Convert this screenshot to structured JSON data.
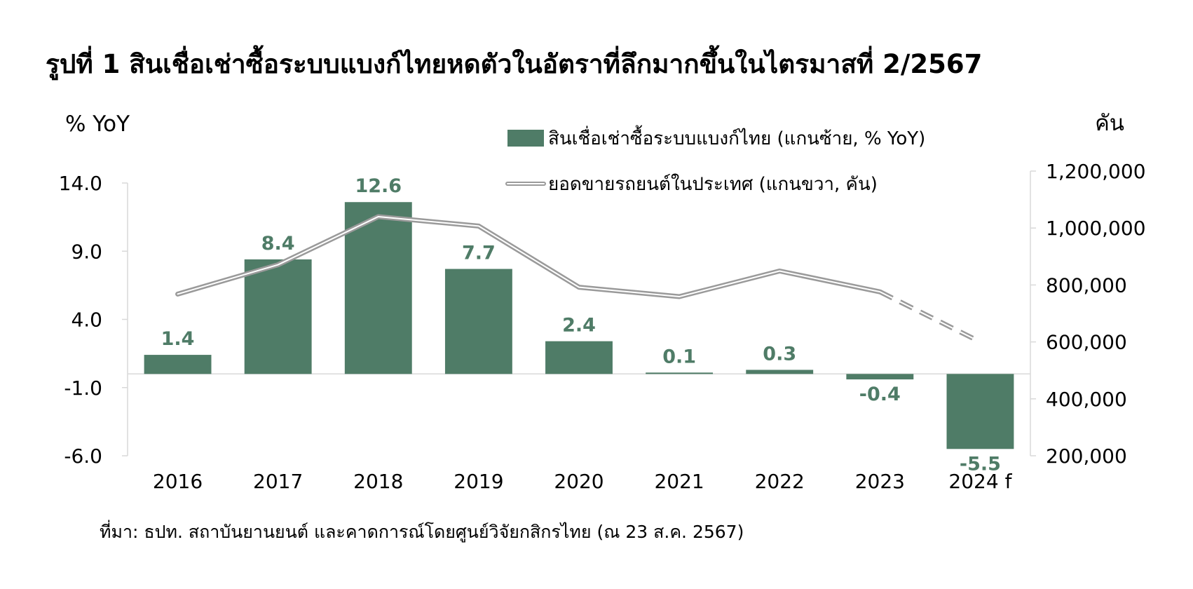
{
  "title": "รูปที่ 1 สินเชื่อเช่าซื้อระบบแบงก์ไทยหดตัวในอัตราที่ลึกมากขึ้นในไตรมาสที่ 2/2567",
  "source": "ที่มา: ธปท. สถาบันยานยนต์ และคาดการณ์โดยศูนย์วิจัยกสิกรไทย (ณ 23 ส.ค. 2567)",
  "colors": {
    "bar": "#4f7c67",
    "line": "#9a9a9a",
    "label": "#4f7c67"
  },
  "chart_data": {
    "type": "bar",
    "categories": [
      "2016",
      "2017",
      "2018",
      "2019",
      "2020",
      "2021",
      "2022",
      "2023",
      "2024 f"
    ],
    "left_axis": {
      "unit_label": "% YoY",
      "ticks": [
        "14.0",
        "9.0",
        "4.0",
        "-1.0",
        "-6.0"
      ],
      "ylim": [
        -6,
        14
      ]
    },
    "right_axis": {
      "unit_label": "คัน",
      "ticks": [
        "1,200,000",
        "1,000,000",
        "800,000",
        "600,000",
        "400,000",
        "200,000"
      ],
      "ylim": [
        200000,
        1200000
      ]
    },
    "series": [
      {
        "name": "สินเชื่อเช่าซื้อระบบแบงก์ไทย (แกนซ้าย, % YoY)",
        "type": "bar",
        "axis": "left",
        "values": [
          1.4,
          8.4,
          12.6,
          7.7,
          2.4,
          0.1,
          0.3,
          -0.4,
          -5.5
        ],
        "labels": [
          "1.4",
          "8.4",
          "12.6",
          "7.7",
          "2.4",
          "0.1",
          "0.3",
          "-0.4",
          "-5.5"
        ]
      },
      {
        "name": "ยอดขายรถยนต์ในประเทศ (แกนขวา, คัน)",
        "type": "line",
        "axis": "right",
        "values": [
          768000,
          871000,
          1040000,
          1007000,
          792000,
          759000,
          849000,
          776000,
          600000
        ],
        "forecast_from_index": 7
      }
    ],
    "grid": false,
    "legend_position": "top-center"
  }
}
